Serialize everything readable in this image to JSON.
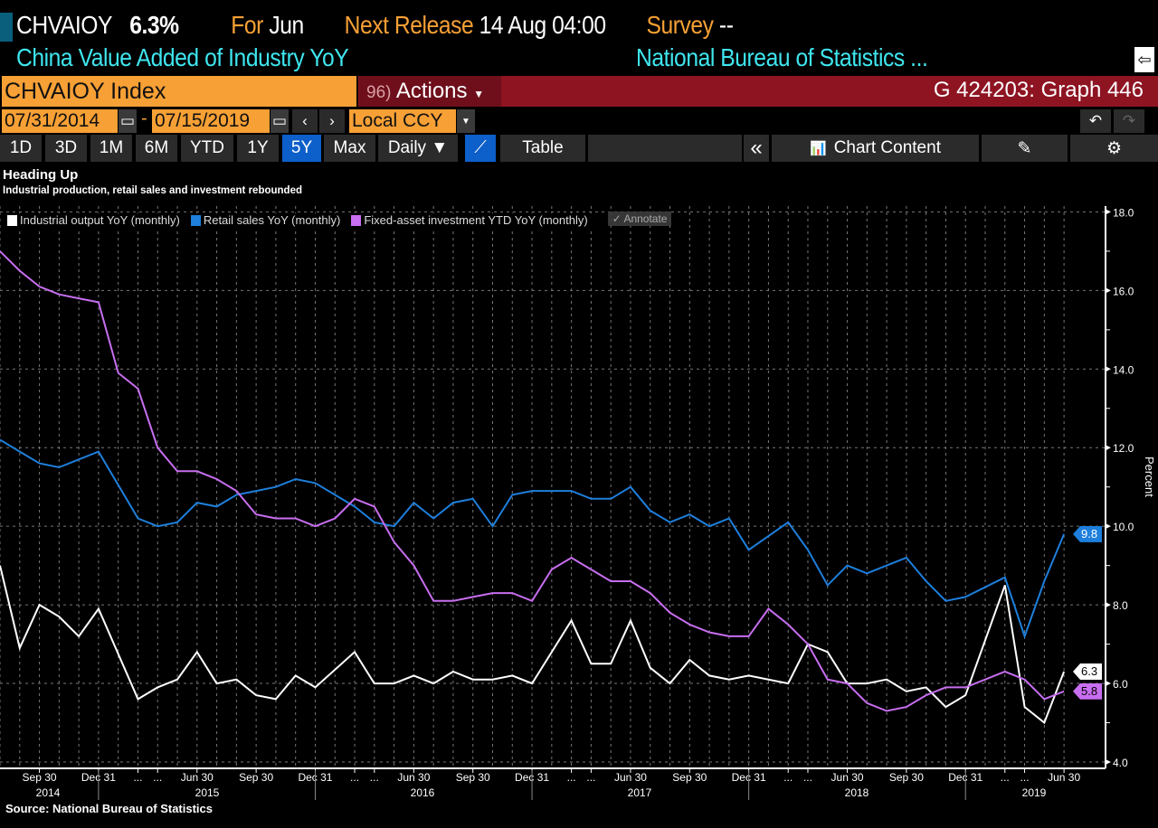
{
  "header": {
    "ticker": "CHVAIOY",
    "value": "6.3%",
    "for_label": "For",
    "for_value": "Jun",
    "next_label": "Next Release",
    "next_value": "14 Aug 04:00",
    "survey_label": "Survey",
    "survey_value": "--",
    "description": "China Value Added of Industry YoY",
    "source": "National Bureau of Statistics ..."
  },
  "command": {
    "security": "CHVAIOY Index",
    "actions_num": "96)",
    "actions": "Actions",
    "graph": "G 424203: Graph 446"
  },
  "dates": {
    "start": "07/31/2014",
    "end": "07/15/2019",
    "currency": "Local CCY"
  },
  "toolbar": {
    "ranges": [
      "1D",
      "3D",
      "1M",
      "6M",
      "YTD",
      "1Y",
      "5Y",
      "Max"
    ],
    "selected": "5Y",
    "frequency": "Daily ▼",
    "table": "Table",
    "collapse": "«",
    "chart_content": "Chart Content"
  },
  "chart_data": {
    "type": "line",
    "title": "Heading Up",
    "subtitle": "Industrial production, retail sales and investment rebounded",
    "ylabel": "Percent",
    "ylim": [
      4,
      18
    ],
    "yticks": [
      "4.0",
      "6.0",
      "8.0",
      "10.0",
      "12.0",
      "14.0",
      "16.0",
      "18.0"
    ],
    "grid": true,
    "legend": "top-left",
    "x": [
      "2014-07",
      "2014-08",
      "2014-09",
      "2014-10",
      "2014-11",
      "2014-12",
      "2015-02",
      "2015-03",
      "2015-04",
      "2015-05",
      "2015-06",
      "2015-07",
      "2015-08",
      "2015-09",
      "2015-10",
      "2015-11",
      "2015-12",
      "2016-02",
      "2016-03",
      "2016-04",
      "2016-05",
      "2016-06",
      "2016-07",
      "2016-08",
      "2016-09",
      "2016-10",
      "2016-11",
      "2016-12",
      "2017-02",
      "2017-03",
      "2017-04",
      "2017-05",
      "2017-06",
      "2017-07",
      "2017-08",
      "2017-09",
      "2017-10",
      "2017-11",
      "2017-12",
      "2018-02",
      "2018-03",
      "2018-04",
      "2018-05",
      "2018-06",
      "2018-07",
      "2018-08",
      "2018-09",
      "2018-10",
      "2018-11",
      "2018-12",
      "2019-02",
      "2019-03",
      "2019-04",
      "2019-05",
      "2019-06"
    ],
    "xtick_labels": [
      "Sep 30",
      "Dec 31",
      "...",
      "...",
      "Jun 30",
      "Sep 30",
      "Dec 31",
      "...",
      "...",
      "Jun 30",
      "Sep 30",
      "Dec 31",
      "...",
      "...",
      "Jun 30",
      "Sep 30",
      "Dec 31",
      "...",
      "...",
      "Jun 30",
      "Sep 30",
      "Dec 31",
      "...",
      "...",
      "Jun 30"
    ],
    "years": [
      "2014",
      "2015",
      "2016",
      "2017",
      "2018",
      "2019"
    ],
    "series": [
      {
        "name": "Industrial output YoY (monthly)",
        "color": "#ffffff",
        "last": "6.3",
        "values": [
          9.0,
          6.9,
          8.0,
          7.7,
          7.2,
          7.9,
          null,
          5.6,
          5.9,
          6.1,
          6.8,
          6.0,
          6.1,
          5.7,
          5.6,
          6.2,
          5.9,
          null,
          6.8,
          6.0,
          6.0,
          6.2,
          6.0,
          6.3,
          6.1,
          6.1,
          6.2,
          6.0,
          null,
          7.6,
          6.5,
          6.5,
          7.6,
          6.4,
          6.0,
          6.6,
          6.2,
          6.1,
          6.2,
          null,
          6.0,
          7.0,
          6.8,
          6.0,
          6.0,
          6.1,
          5.8,
          5.9,
          5.4,
          5.7,
          null,
          8.5,
          5.4,
          5.0,
          6.3
        ]
      },
      {
        "name": "Retail sales YoY (monthly)",
        "color": "#1e7fdc",
        "last": "9.8",
        "values": [
          12.2,
          11.9,
          11.6,
          11.5,
          11.7,
          11.9,
          null,
          10.2,
          10.0,
          10.1,
          10.6,
          10.5,
          10.8,
          10.9,
          11.0,
          11.2,
          11.1,
          null,
          10.5,
          10.1,
          10.0,
          10.6,
          10.2,
          10.6,
          10.7,
          10.0,
          10.8,
          10.9,
          null,
          10.9,
          10.7,
          10.7,
          11.0,
          10.4,
          10.1,
          10.3,
          10.0,
          10.2,
          9.4,
          null,
          10.1,
          9.4,
          8.5,
          9.0,
          8.8,
          9.0,
          9.2,
          8.6,
          8.1,
          8.2,
          null,
          8.7,
          7.2,
          8.6,
          9.8
        ]
      },
      {
        "name": "Fixed-asset investment YTD YoY (monthly)",
        "color": "#c86ef0",
        "last": "5.8",
        "values": [
          17.0,
          16.5,
          16.1,
          15.9,
          15.8,
          15.7,
          13.9,
          13.5,
          12.0,
          11.4,
          11.4,
          11.2,
          10.9,
          10.3,
          10.2,
          10.2,
          10.0,
          10.2,
          10.7,
          10.5,
          9.6,
          9.0,
          8.1,
          8.1,
          8.2,
          8.3,
          8.3,
          8.1,
          8.9,
          9.2,
          8.9,
          8.6,
          8.6,
          8.3,
          7.8,
          7.5,
          7.3,
          7.2,
          7.2,
          7.9,
          7.5,
          7.0,
          6.1,
          6.0,
          5.5,
          5.3,
          5.4,
          5.7,
          5.9,
          5.9,
          6.1,
          6.3,
          6.1,
          5.6,
          5.8
        ]
      }
    ],
    "annotate": "Annotate",
    "source": "Source: National Bureau of Statistics"
  }
}
